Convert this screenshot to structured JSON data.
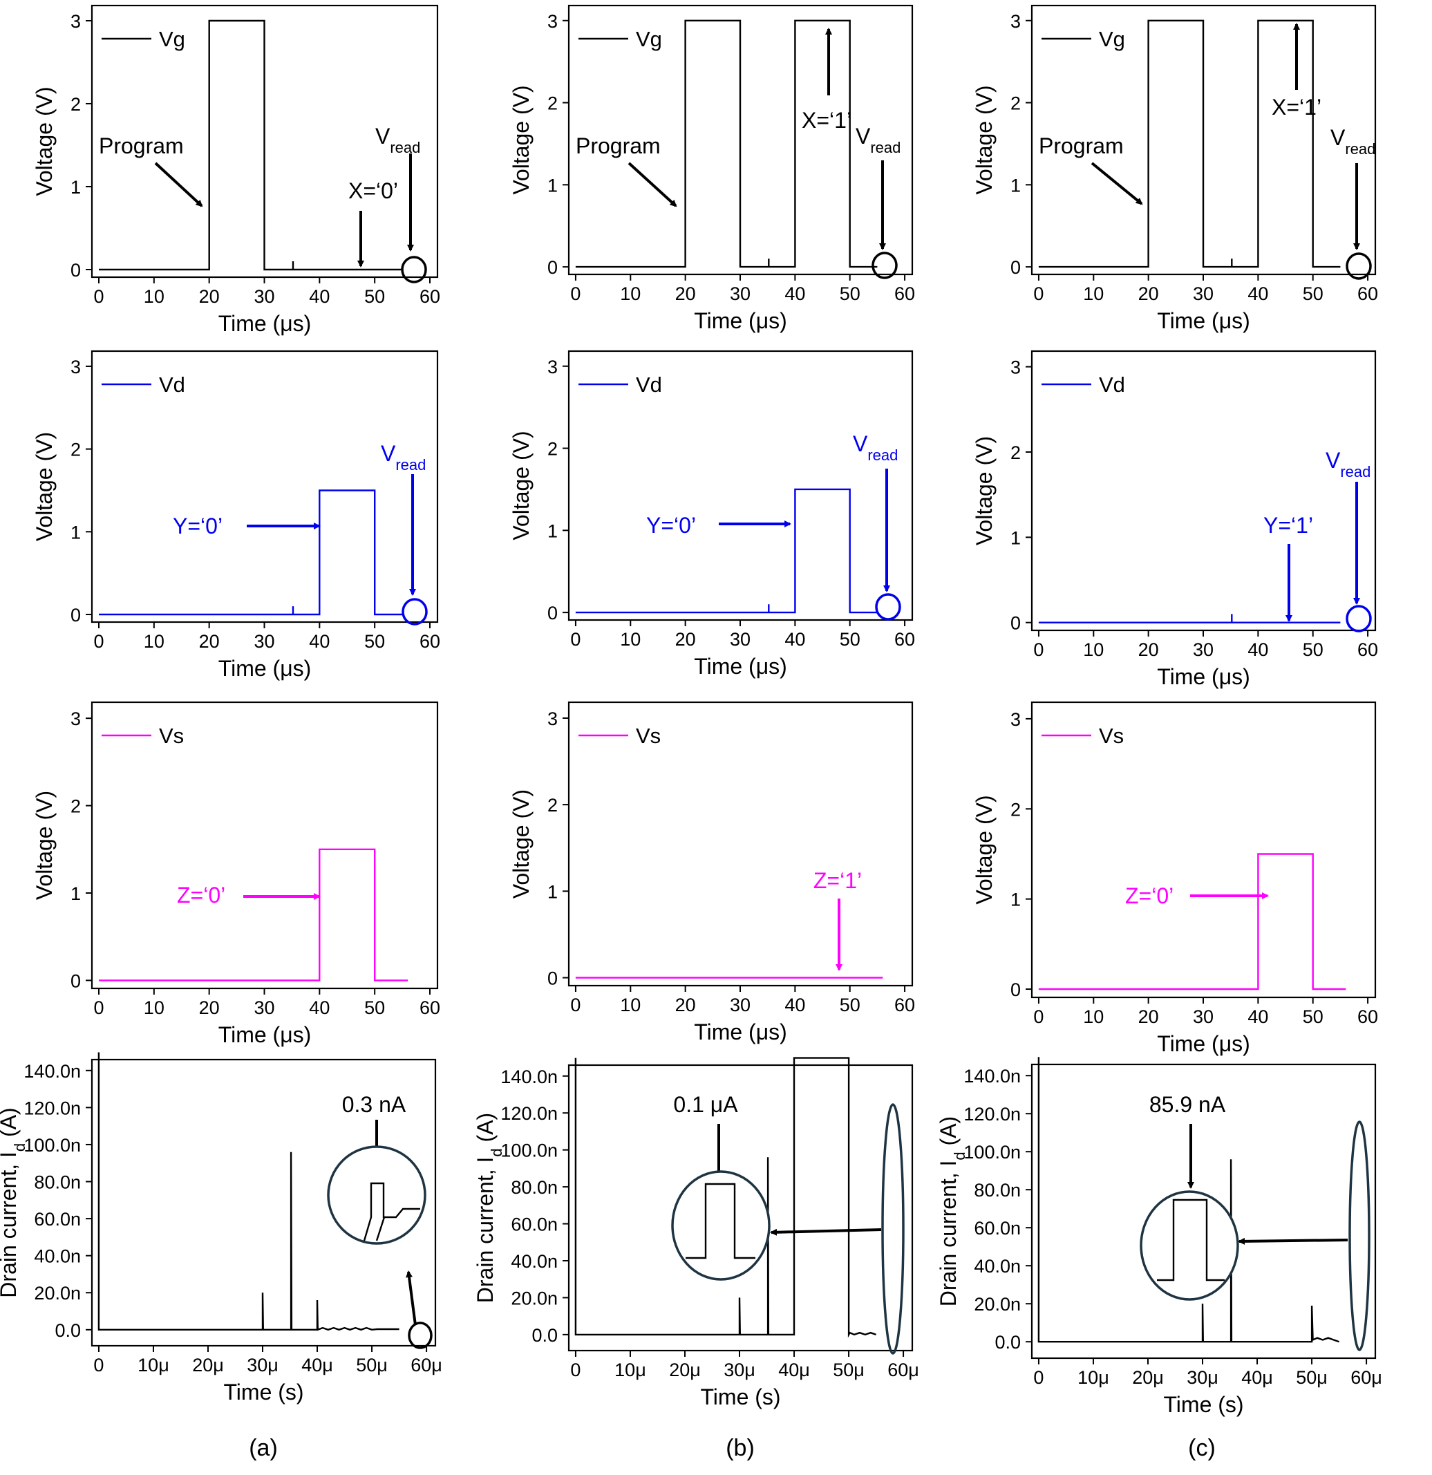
{
  "figure": {
    "captions": [
      "(a)",
      "(b)",
      "(c)"
    ]
  },
  "colors": {
    "vg": "#000000",
    "vd": "#0000ee",
    "vs": "#ff00ff",
    "id": "#000000",
    "zoom": "#1f3442"
  },
  "chart_data": [
    {
      "id": "a-vg",
      "type": "line",
      "legend": "Vg",
      "color": "#000000",
      "xlabel_prefix": "Time (",
      "xlabel_unit": "μs",
      "xlabel_suffix": ")",
      "ylabel": "Voltage (V)",
      "xlim": [
        0,
        60
      ],
      "ylim": [
        0,
        3
      ],
      "xticks": [
        "0",
        "10",
        "20",
        "30",
        "40",
        "50",
        "60"
      ],
      "yticks": [
        "0",
        "1",
        "2",
        "3"
      ],
      "x": [
        0,
        20,
        20,
        30,
        30,
        35.2,
        35.2,
        35.2,
        55
      ],
      "y": [
        0,
        0,
        3,
        3,
        0,
        0,
        0.1,
        0,
        0
      ],
      "annotations": [
        "Program",
        "X=‘0’"
      ],
      "vread": {
        "main": "V",
        "sub": "read"
      }
    },
    {
      "id": "b-vg",
      "type": "line",
      "legend": "Vg",
      "color": "#000000",
      "xlabel_prefix": "Time (",
      "xlabel_unit": "μs",
      "xlabel_suffix": ")",
      "ylabel": "Voltage (V)",
      "xlim": [
        0,
        60
      ],
      "ylim": [
        0,
        3
      ],
      "xticks": [
        "0",
        "10",
        "20",
        "30",
        "40",
        "50",
        "60"
      ],
      "yticks": [
        "0",
        "1",
        "2",
        "3"
      ],
      "x": [
        0,
        20,
        20,
        30,
        30,
        35.2,
        35.2,
        35.2,
        40,
        40,
        50,
        50,
        55
      ],
      "y": [
        0,
        0,
        3,
        3,
        0,
        0,
        0.1,
        0,
        0,
        3,
        3,
        0,
        0
      ],
      "annotations": [
        "Program",
        "X=‘1’"
      ],
      "vread": {
        "main": "V",
        "sub": "read"
      }
    },
    {
      "id": "c-vg",
      "type": "line",
      "legend": "Vg",
      "color": "#000000",
      "xlabel_prefix": "Time (",
      "xlabel_unit": "μs",
      "xlabel_suffix": ")",
      "ylabel": "Voltage (V)",
      "xlim": [
        0,
        60
      ],
      "ylim": [
        0,
        3
      ],
      "xticks": [
        "0",
        "10",
        "20",
        "30",
        "40",
        "50",
        "60"
      ],
      "yticks": [
        "0",
        "1",
        "2",
        "3"
      ],
      "x": [
        0,
        20,
        20,
        30,
        30,
        35.2,
        35.2,
        35.2,
        40,
        40,
        50,
        50,
        55
      ],
      "y": [
        0,
        0,
        3,
        3,
        0,
        0,
        0.1,
        0,
        0,
        3,
        3,
        0,
        0
      ],
      "annotations": [
        "Program",
        "X=‘1’"
      ],
      "vread": {
        "main": "V",
        "sub": "read"
      }
    },
    {
      "id": "a-vd",
      "type": "line",
      "legend": "Vd",
      "color": "#0000ee",
      "xlabel_prefix": "Time (",
      "xlabel_unit": "μs",
      "xlabel_suffix": ")",
      "ylabel": "Voltage (V)",
      "xlim": [
        0,
        60
      ],
      "ylim": [
        0,
        3
      ],
      "xticks": [
        "0",
        "10",
        "20",
        "30",
        "40",
        "50",
        "60"
      ],
      "yticks": [
        "0",
        "1",
        "2",
        "3"
      ],
      "x": [
        0,
        35.2,
        35.2,
        35.2,
        40,
        40,
        50,
        50,
        55
      ],
      "y": [
        0,
        0,
        0.1,
        0,
        0,
        1.5,
        1.5,
        0,
        0
      ],
      "annotations": [
        "Y=‘0’"
      ],
      "vread": {
        "main": "V",
        "sub": "read"
      }
    },
    {
      "id": "b-vd",
      "type": "line",
      "legend": "Vd",
      "color": "#0000ee",
      "xlabel_prefix": "Time (",
      "xlabel_unit": "μs",
      "xlabel_suffix": ")",
      "ylabel": "Voltage (V)",
      "xlim": [
        0,
        60
      ],
      "ylim": [
        0,
        3
      ],
      "xticks": [
        "0",
        "10",
        "20",
        "30",
        "40",
        "50",
        "60"
      ],
      "yticks": [
        "0",
        "1",
        "2",
        "3"
      ],
      "x": [
        0,
        35.2,
        35.2,
        35.2,
        40,
        40,
        50,
        50,
        55
      ],
      "y": [
        0,
        0,
        0.1,
        0,
        0,
        1.5,
        1.5,
        0,
        0
      ],
      "annotations": [
        "Y=‘0’"
      ],
      "vread": {
        "main": "V",
        "sub": "read"
      }
    },
    {
      "id": "c-vd",
      "type": "line",
      "legend": "Vd",
      "color": "#0000ee",
      "xlabel_prefix": "Time (",
      "xlabel_unit": "μs",
      "xlabel_suffix": ")",
      "ylabel": "Voltage (V)",
      "xlim": [
        0,
        60
      ],
      "ylim": [
        0,
        3
      ],
      "xticks": [
        "0",
        "10",
        "20",
        "30",
        "40",
        "50",
        "60"
      ],
      "yticks": [
        "0",
        "1",
        "2",
        "3"
      ],
      "x": [
        0,
        35.2,
        35.2,
        35.2,
        55
      ],
      "y": [
        0,
        0,
        0.1,
        0,
        0
      ],
      "annotations": [
        "Y=‘1’"
      ],
      "vread": {
        "main": "V",
        "sub": "read"
      }
    },
    {
      "id": "a-vs",
      "type": "line",
      "legend": "Vs",
      "color": "#ff00ff",
      "xlabel_prefix": "Time (",
      "xlabel_unit": "μs",
      "xlabel_suffix": ")",
      "ylabel": "Voltage (V)",
      "xlim": [
        0,
        60
      ],
      "ylim": [
        0,
        3
      ],
      "xticks": [
        "0",
        "10",
        "20",
        "30",
        "40",
        "50",
        "60"
      ],
      "yticks": [
        "0",
        "1",
        "2",
        "3"
      ],
      "x": [
        0,
        40,
        40,
        50,
        50,
        56
      ],
      "y": [
        0,
        0,
        1.5,
        1.5,
        0,
        0
      ],
      "annotations": [
        "Z=‘0’"
      ]
    },
    {
      "id": "b-vs",
      "type": "line",
      "legend": "Vs",
      "color": "#ff00ff",
      "xlabel_prefix": "Time (",
      "xlabel_unit": "μs",
      "xlabel_suffix": ")",
      "ylabel": "Voltage (V)",
      "xlim": [
        0,
        60
      ],
      "ylim": [
        0,
        3
      ],
      "xticks": [
        "0",
        "10",
        "20",
        "30",
        "40",
        "50",
        "60"
      ],
      "yticks": [
        "0",
        "1",
        "2",
        "3"
      ],
      "x": [
        0,
        56
      ],
      "y": [
        0,
        0
      ],
      "annotations": [
        "Z=‘1’"
      ]
    },
    {
      "id": "c-vs",
      "type": "line",
      "legend": "Vs",
      "color": "#ff00ff",
      "xlabel_prefix": "Time (",
      "xlabel_unit": "μs",
      "xlabel_suffix": ")",
      "ylabel": "Voltage (V)",
      "xlim": [
        0,
        60
      ],
      "ylim": [
        0,
        3
      ],
      "xticks": [
        "0",
        "10",
        "20",
        "30",
        "40",
        "50",
        "60"
      ],
      "yticks": [
        "0",
        "1",
        "2",
        "3"
      ],
      "x": [
        0,
        40,
        40,
        50,
        50,
        56
      ],
      "y": [
        0,
        0,
        1.5,
        1.5,
        0,
        0
      ],
      "annotations": [
        "Z=‘0’"
      ]
    },
    {
      "id": "a-id",
      "type": "line",
      "color": "#000000",
      "xlabel": "Time (s)",
      "ylabel_prefix": "Drain current, I",
      "ylabel_sub": "d",
      "ylabel_suffix": " (A)",
      "xlim": [
        0,
        60
      ],
      "ylim": [
        0,
        140
      ],
      "xticks": [
        "0",
        "10μ",
        "20μ",
        "30μ",
        "40μ",
        "50μ",
        "60μ"
      ],
      "yticks": [
        "0.0",
        "20.0n",
        "40.0n",
        "60.0n",
        "80.0n",
        "100.0n",
        "120.0n",
        "140.0n"
      ],
      "x": [
        0,
        0,
        0,
        30,
        30,
        30.1,
        35.2,
        35.2,
        35.3,
        40,
        40,
        40.1,
        41,
        42,
        43,
        44,
        45,
        46,
        47,
        48,
        49,
        50,
        51,
        52,
        53,
        54,
        55
      ],
      "y": [
        0,
        150,
        0,
        0,
        20,
        0,
        0,
        96,
        0,
        0,
        16,
        0,
        1,
        0,
        1,
        0,
        1,
        0,
        1,
        0,
        1,
        0,
        0.3,
        0.3,
        0.3,
        0.3,
        0.3
      ],
      "annotations": [
        "0.3 nA"
      ]
    },
    {
      "id": "b-id",
      "type": "line",
      "color": "#000000",
      "xlabel": "Time (s)",
      "ylabel_prefix": "Drain current, I",
      "ylabel_sub": "d",
      "ylabel_suffix": " (A)",
      "xlim": [
        0,
        60
      ],
      "ylim": [
        0,
        140
      ],
      "xticks": [
        "0",
        "10μ",
        "20μ",
        "30μ",
        "40μ",
        "50μ",
        "60μ"
      ],
      "yticks": [
        "0.0",
        "20.0n",
        "40.0n",
        "60.0n",
        "80.0n",
        "100.0n",
        "120.0n",
        "140.0n"
      ],
      "x": [
        0,
        0,
        0,
        30,
        30,
        30.1,
        35.2,
        35.2,
        35.3,
        40,
        40,
        50,
        50,
        50.2,
        51,
        52,
        53,
        54,
        55
      ],
      "y": [
        0,
        150,
        0,
        0,
        20,
        0,
        0,
        96,
        0,
        0,
        150,
        150,
        0,
        1,
        0,
        1,
        0,
        1,
        0
      ],
      "annotations": [
        "0.1 μA"
      ]
    },
    {
      "id": "c-id",
      "type": "line",
      "color": "#000000",
      "xlabel": "Time (s)",
      "ylabel_prefix": "Drain current, I",
      "ylabel_sub": "d",
      "ylabel_suffix": " (A)",
      "xlim": [
        0,
        60
      ],
      "ylim": [
        0,
        140
      ],
      "xticks": [
        "0",
        "10μ",
        "20μ",
        "30μ",
        "40μ",
        "50μ",
        "60μ"
      ],
      "yticks": [
        "0.0",
        "20.0n",
        "40.0n",
        "60.0n",
        "80.0n",
        "100.0n",
        "120.0n",
        "140.0n"
      ],
      "x": [
        0,
        0,
        0,
        30,
        30,
        30.1,
        35.2,
        35.2,
        35.3,
        50,
        50,
        50.2,
        51,
        52,
        53,
        54,
        55
      ],
      "y": [
        0,
        150,
        0,
        0,
        20,
        0,
        0,
        96,
        0,
        0,
        19,
        1,
        2,
        1,
        2,
        1,
        0
      ],
      "annotations": [
        "85.9 nA"
      ]
    }
  ]
}
